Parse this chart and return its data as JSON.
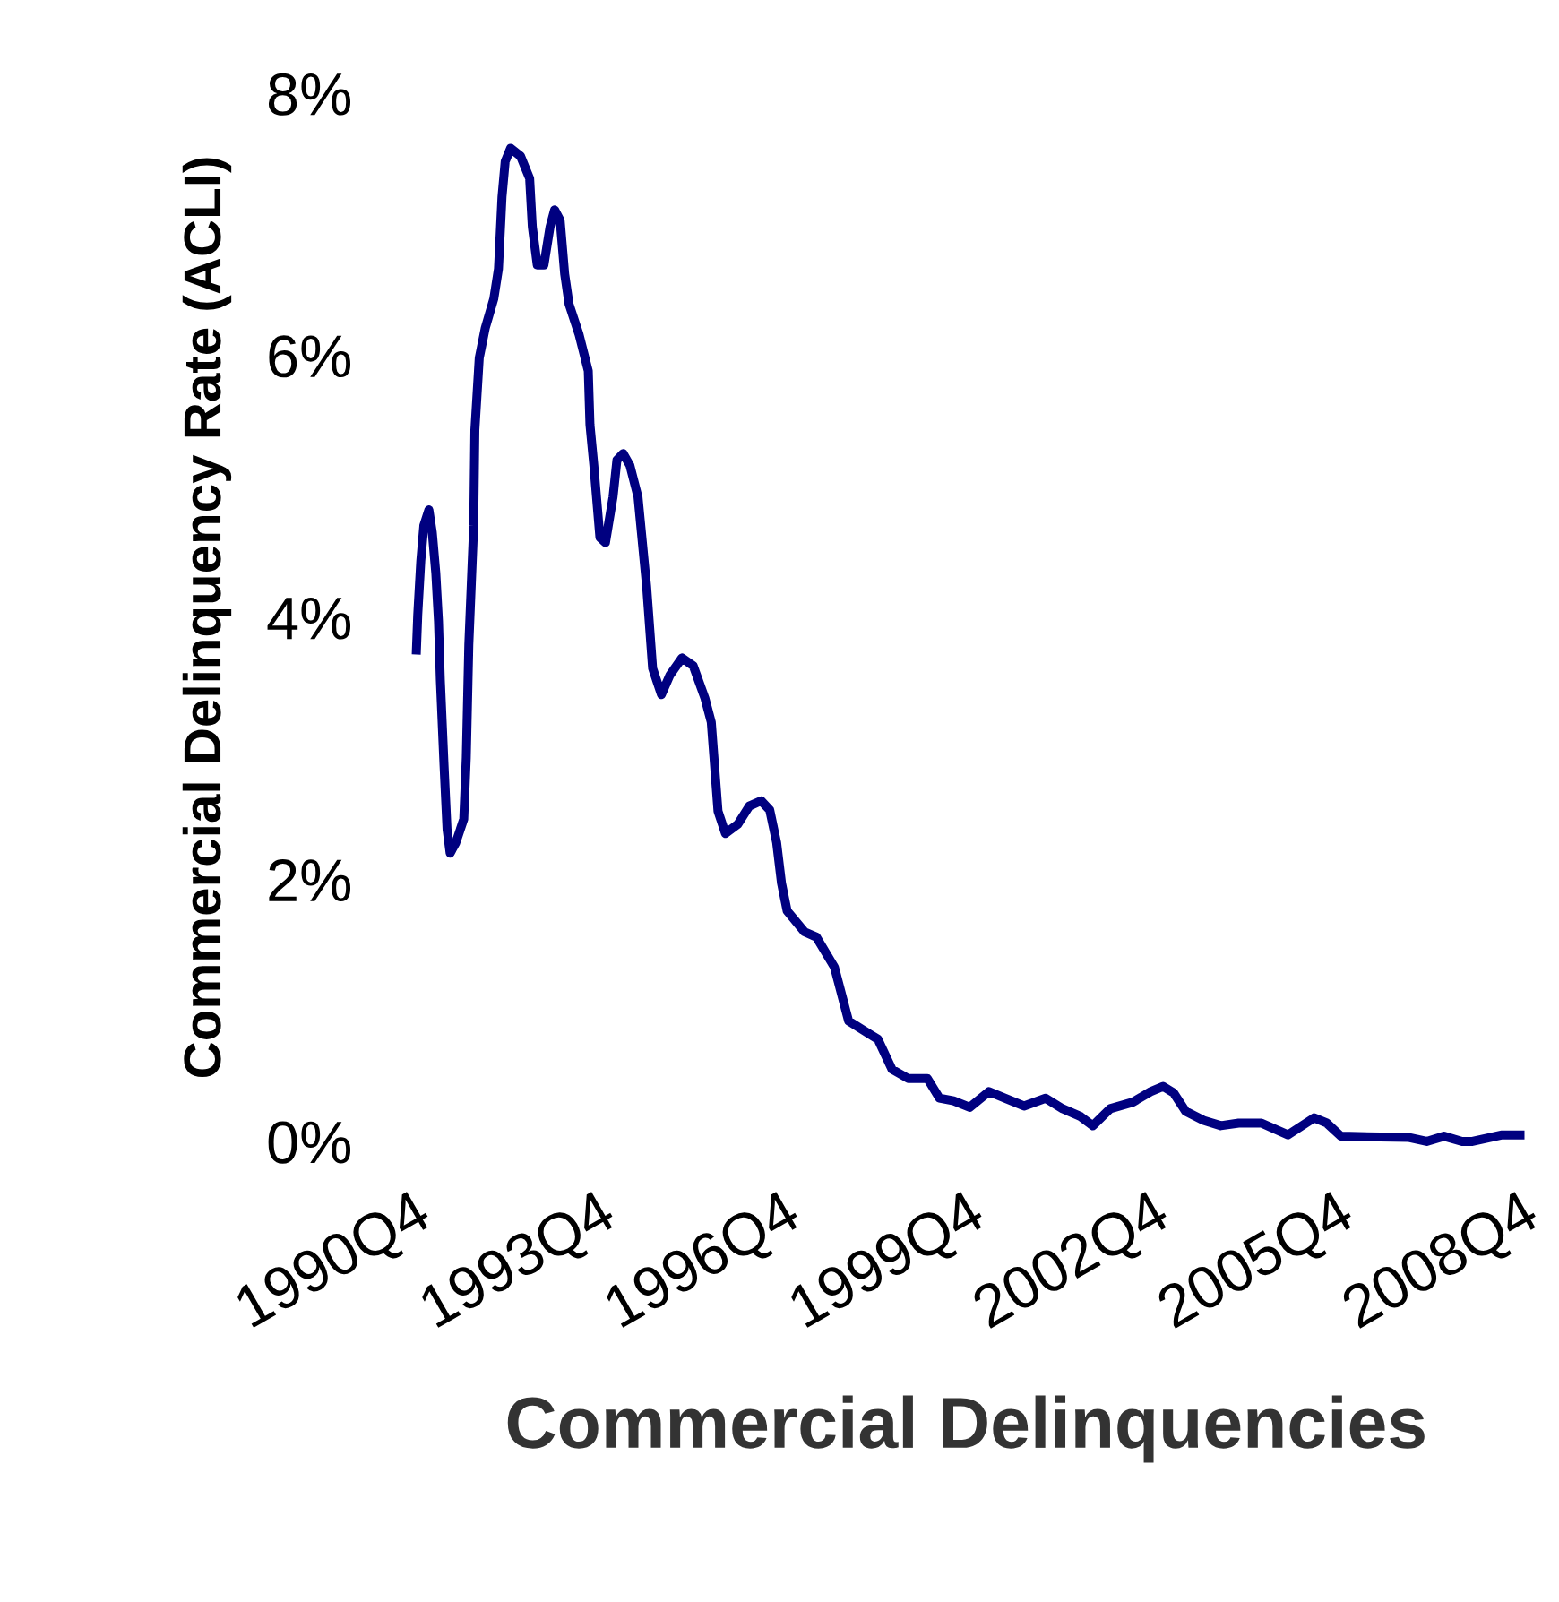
{
  "chart_data": {
    "type": "line",
    "xlabel": "Commercial Delinquencies",
    "ylabel": "Commercial Delinquency Rate (ACLI)",
    "xlim": [
      "1990-10-01",
      "2008-10-01"
    ],
    "ylim": [
      0,
      8
    ],
    "xticks": [
      {
        "value": "1990-10-01",
        "label": "1990Q4"
      },
      {
        "value": "1993-10-01",
        "label": "1993Q4"
      },
      {
        "value": "1996-10-01",
        "label": "1996Q4"
      },
      {
        "value": "1999-10-01",
        "label": "1999Q4"
      },
      {
        "value": "2002-10-01",
        "label": "2002Q4"
      },
      {
        "value": "2005-10-01",
        "label": "2005Q4"
      },
      {
        "value": "2008-10-01",
        "label": "2008Q4"
      }
    ],
    "yticks": [
      {
        "value": 0,
        "label": "0%"
      },
      {
        "value": 2,
        "label": "2%"
      },
      {
        "value": 4,
        "label": "4%"
      },
      {
        "value": 6,
        "label": "6%"
      },
      {
        "value": 8,
        "label": "8%"
      }
    ],
    "grid": false,
    "legend": false,
    "marker": "none",
    "line_style": "solid",
    "series": [
      {
        "color": "#000080",
        "x": [
          "1990-10-26",
          "1990-11-03",
          "1990-11-21",
          "1990-12-09",
          "1991-01-08",
          "1991-01-28",
          "1991-02-18",
          "1991-03-06",
          "1991-03-17",
          "1991-04-08",
          "1991-04-26",
          "1991-05-14",
          "1991-06-17",
          "1991-08-03",
          "1991-08-18",
          "1991-09-02",
          "1991-10-01",
          "1991-10-08",
          "1991-11-03",
          "1991-12-09",
          "1992-01-28",
          "1992-02-25",
          "1992-03-17",
          "1992-04-05",
          "1992-05-07",
          "1992-07-05",
          "1992-08-28",
          "1992-09-13",
          "1992-10-12",
          "1992-11-21",
          "1992-12-27",
          "1993-01-23",
          "1993-02-25",
          "1993-03-24",
          "1993-04-19",
          "1993-06-17",
          "1993-08-11",
          "1993-08-21",
          "1993-09-13",
          "1993-10-19",
          "1993-11-21",
          "1994-01-05",
          "1994-01-28",
          "1994-03-06",
          "1994-04-15",
          "1994-06-02",
          "1994-07-23",
          "1994-08-28",
          "1994-10-19",
          "1994-12-09",
          "1995-02-18",
          "1995-04-26",
          "1995-07-05",
          "1995-08-11",
          "1995-09-20",
          "1995-11-03",
          "1996-01-15",
          "1996-03-24",
          "1996-06-02",
          "1996-07-23",
          "1996-09-02",
          "1996-10-01",
          "1996-11-03",
          "1997-02-14",
          "1997-04-26",
          "1997-08-11",
          "1997-11-03",
          "1998-03-06",
          "1998-04-26",
          "1998-07-19",
          "1998-10-23",
          "1999-02-14",
          "1999-04-26",
          "1999-07-19",
          "1999-10-23",
          "2000-02-14",
          "2000-05-18",
          "2000-09-09",
          "2001-01-15",
          "2001-04-26",
          "2001-08-11",
          "2001-10-23",
          "2002-02-03",
          "2002-06-17",
          "2002-10-01",
          "2002-12-13",
          "2003-02-14",
          "2003-04-26",
          "2003-08-11",
          "2003-11-21",
          "2004-03-06",
          "2004-07-19",
          "2004-12-24",
          "2005-05-28",
          "2005-08-11",
          "2005-11-03",
          "2006-12-13",
          "2007-03-27",
          "2007-07-08",
          "2007-10-23",
          "2007-12-24",
          "2008-06-17",
          "2008-10-01"
        ],
        "values": [
          3.75,
          4.02,
          4.43,
          4.7,
          4.82,
          4.65,
          4.34,
          3.97,
          3.52,
          2.87,
          2.38,
          2.2,
          2.28,
          2.46,
          2.93,
          3.79,
          4.7,
          5.43,
          5.98,
          6.21,
          6.43,
          6.66,
          7.21,
          7.48,
          7.58,
          7.52,
          7.35,
          6.98,
          6.69,
          6.69,
          6.98,
          7.11,
          7.03,
          6.62,
          6.39,
          6.16,
          5.88,
          5.47,
          5.16,
          4.61,
          4.57,
          4.92,
          5.2,
          5.25,
          5.16,
          4.92,
          4.24,
          3.61,
          3.41,
          3.56,
          3.69,
          3.63,
          3.38,
          3.2,
          2.52,
          2.35,
          2.42,
          2.56,
          2.6,
          2.53,
          2.28,
          1.97,
          1.76,
          1.6,
          1.56,
          1.33,
          0.92,
          0.82,
          0.78,
          0.55,
          0.48,
          0.48,
          0.33,
          0.31,
          0.26,
          0.38,
          0.33,
          0.27,
          0.33,
          0.25,
          0.19,
          0.12,
          0.25,
          0.3,
          0.38,
          0.42,
          0.37,
          0.23,
          0.16,
          0.12,
          0.14,
          0.14,
          0.05,
          0.18,
          0.14,
          0.04,
          0.03,
          0.0,
          0.04,
          0.0,
          0.0,
          0.05,
          0.05
        ]
      }
    ]
  }
}
